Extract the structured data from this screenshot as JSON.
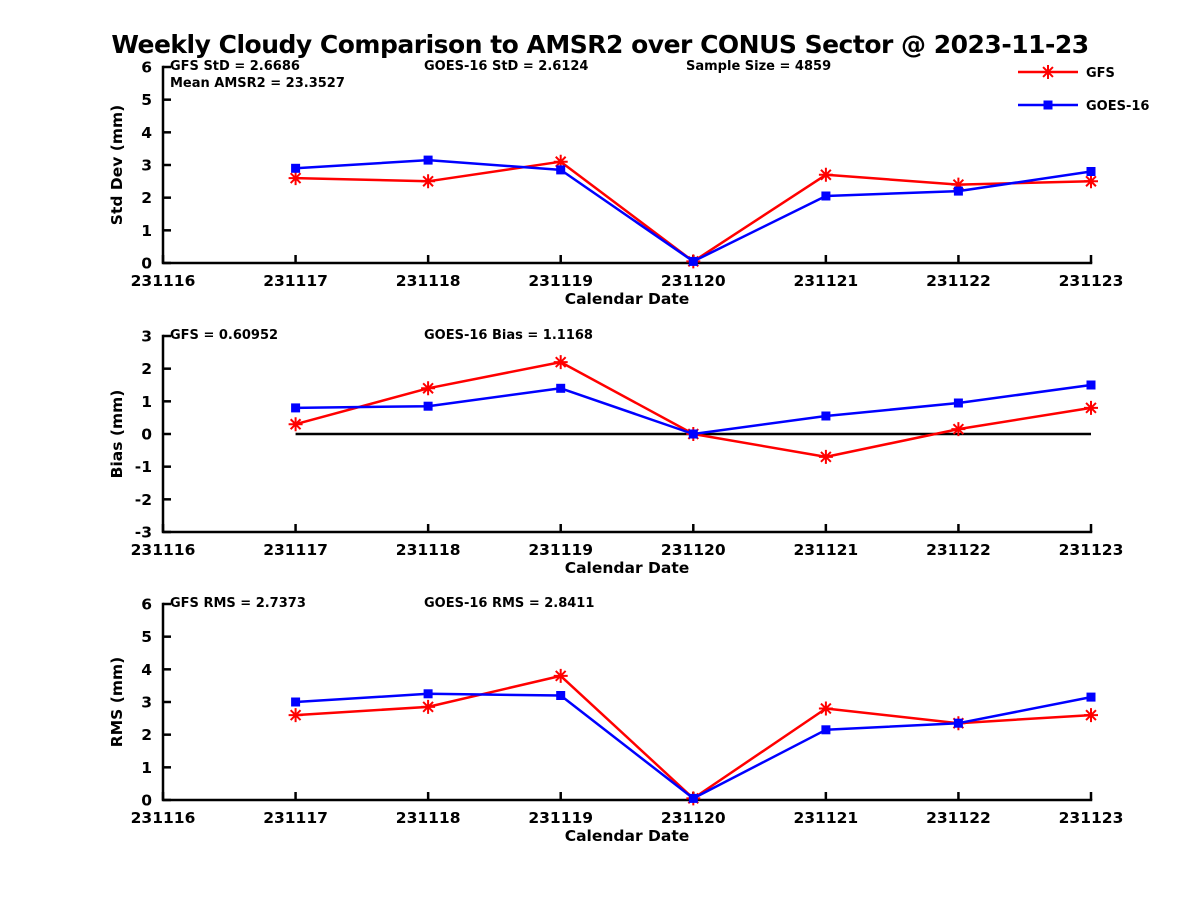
{
  "title": "Weekly Cloudy Comparison to AMSR2 over CONUS Sector @ 2023-11-23",
  "figure": {
    "x_categories": [
      "231116",
      "231117",
      "231118",
      "231119",
      "231120",
      "231121",
      "231122",
      "231123"
    ],
    "data_dates": [
      "231117",
      "231118",
      "231119",
      "231120",
      "231121",
      "231122",
      "231123"
    ],
    "xlabel": "Calendar Date",
    "axis_color": "#000000",
    "background_color": "#ffffff",
    "legend": {
      "position": "top-right",
      "items": [
        {
          "label": "GFS",
          "color": "#ff0000",
          "marker": "asterisk-icon"
        },
        {
          "label": "GOES-16",
          "color": "#0000ff",
          "marker": "square-icon"
        }
      ]
    }
  },
  "chart_data": [
    {
      "type": "line",
      "ylabel": "Std Dev (mm)",
      "xlabel": "Calendar Date",
      "ylim": [
        0,
        6
      ],
      "yticks": [
        0,
        1,
        2,
        3,
        4,
        5,
        6
      ],
      "x": [
        "231117",
        "231118",
        "231119",
        "231120",
        "231121",
        "231122",
        "231123"
      ],
      "annotations": [
        [
          "GFS StD = 2.6686",
          "Mean AMSR2 = 23.3527"
        ],
        [
          "GOES-16 StD = 2.6124"
        ],
        [
          "Sample Size = 4859"
        ]
      ],
      "zero_line": false,
      "legend_visible": true,
      "grid": false,
      "series": [
        {
          "name": "GFS",
          "color": "#ff0000",
          "marker": "asterisk",
          "values": [
            2.6,
            2.5,
            3.1,
            0.05,
            2.7,
            2.4,
            2.5
          ]
        },
        {
          "name": "GOES-16",
          "color": "#0000ff",
          "marker": "square",
          "values": [
            2.9,
            3.15,
            2.85,
            0.05,
            2.05,
            2.2,
            2.8
          ]
        }
      ]
    },
    {
      "type": "line",
      "ylabel": "Bias (mm)",
      "xlabel": "Calendar Date",
      "ylim": [
        -3,
        3
      ],
      "yticks": [
        3,
        2,
        1,
        0,
        -1,
        -2,
        -3
      ],
      "x": [
        "231117",
        "231118",
        "231119",
        "231120",
        "231121",
        "231122",
        "231123"
      ],
      "annotations": [
        [
          "GFS = 0.60952"
        ],
        [
          "GOES-16 Bias  = 1.1168"
        ]
      ],
      "zero_line": true,
      "legend_visible": false,
      "grid": false,
      "series": [
        {
          "name": "GFS",
          "color": "#ff0000",
          "marker": "asterisk",
          "values": [
            0.3,
            1.4,
            2.2,
            0.0,
            -0.7,
            0.15,
            0.8
          ]
        },
        {
          "name": "GOES-16",
          "color": "#0000ff",
          "marker": "square",
          "values": [
            0.8,
            0.85,
            1.4,
            0.0,
            0.55,
            0.95,
            1.5
          ]
        }
      ]
    },
    {
      "type": "line",
      "ylabel": "RMS (mm)",
      "xlabel": "Calendar Date",
      "ylim": [
        0,
        6
      ],
      "yticks": [
        0,
        1,
        2,
        3,
        4,
        5,
        6
      ],
      "x": [
        "231117",
        "231118",
        "231119",
        "231120",
        "231121",
        "231122",
        "231123"
      ],
      "annotations": [
        [
          "GFS RMS = 2.7373"
        ],
        [
          "GOES-16 RMS = 2.8411"
        ]
      ],
      "zero_line": false,
      "legend_visible": false,
      "grid": false,
      "series": [
        {
          "name": "GFS",
          "color": "#ff0000",
          "marker": "asterisk",
          "values": [
            2.6,
            2.85,
            3.8,
            0.05,
            2.8,
            2.35,
            2.6
          ]
        },
        {
          "name": "GOES-16",
          "color": "#0000ff",
          "marker": "square",
          "values": [
            3.0,
            3.25,
            3.2,
            0.05,
            2.15,
            2.35,
            3.15
          ]
        }
      ]
    }
  ]
}
